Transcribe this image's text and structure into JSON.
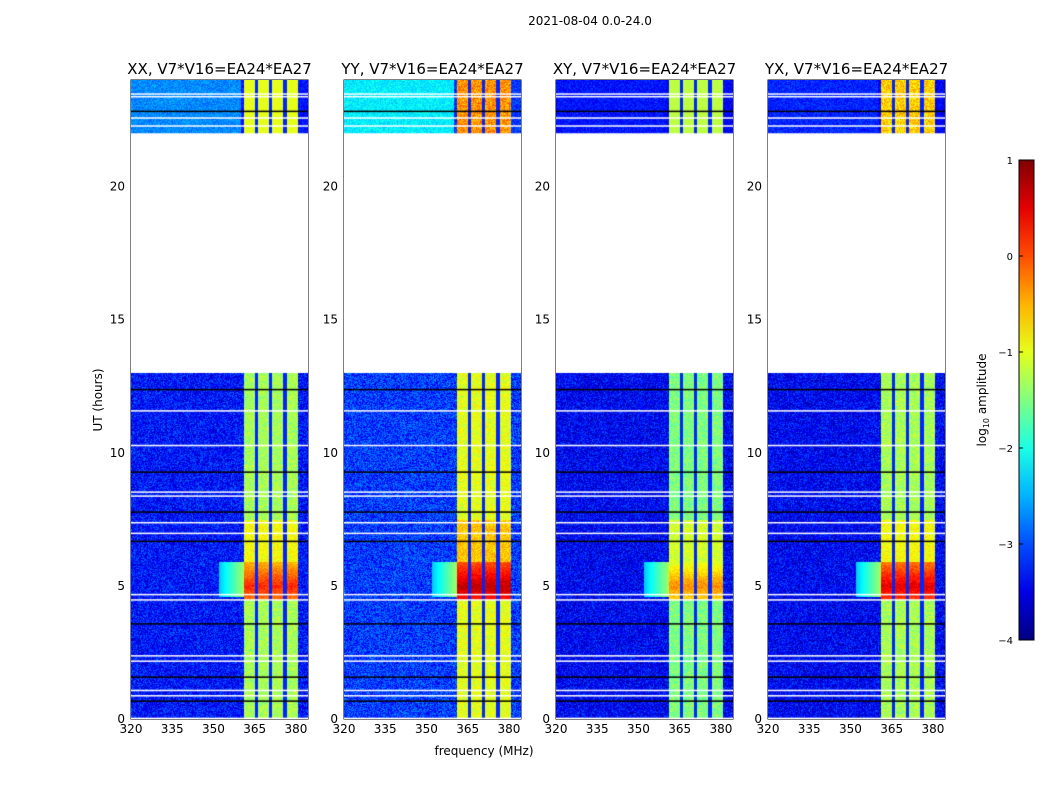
{
  "suptitle": "2021-08-04 0.0-24.0",
  "chart_data": {
    "type": "heatmap",
    "title": "2021-08-04 0.0-24.0",
    "xlabel": "frequency (MHz)",
    "ylabel": "UT (hours)",
    "xlim": [
      320,
      384.4
    ],
    "ylim": [
      0,
      24
    ],
    "xticks": [
      "320",
      "335",
      "350",
      "365",
      "380"
    ],
    "yticks": [
      "0",
      "5",
      "10",
      "15",
      "20"
    ],
    "panels": [
      {
        "title": "XX, V7*V16=EA24*EA27",
        "background_log_amp": -3.3,
        "band_log_amp": -1.3,
        "peak_log_amp": 0.2,
        "top_left_log_amp": -2.7
      },
      {
        "title": "YY, V7*V16=EA24*EA27",
        "background_log_amp": -3.1,
        "band_log_amp": -1.0,
        "peak_log_amp": 0.7,
        "top_left_log_amp": -2.2
      },
      {
        "title": "XY, V7*V16=EA24*EA27",
        "background_log_amp": -3.4,
        "band_log_amp": -1.5,
        "peak_log_amp": -0.3,
        "top_left_log_amp": -3.3
      },
      {
        "title": "YX, V7*V16=EA24*EA27",
        "background_log_amp": -3.4,
        "band_log_amp": -1.3,
        "peak_log_amp": 0.5,
        "top_left_log_amp": -3.2
      }
    ],
    "band_mhz": [
      361,
      380.5
    ],
    "band_notches_mhz": [
      365.6,
      370.7,
      375.8
    ],
    "no_data_hours": [
      13.0,
      22.0
    ],
    "flagged_rows_hours": [
      0.05,
      0.7,
      0.9,
      1.1,
      1.6,
      2.2,
      2.4,
      3.6,
      4.5,
      4.7,
      6.7,
      7.0,
      7.4,
      7.8,
      8.4,
      8.55,
      9.3,
      10.3,
      11.6,
      12.4,
      22.3,
      22.6,
      22.85,
      23.4,
      23.5
    ],
    "colorbar": {
      "label": "log10 amplitude",
      "label_main": "log",
      "label_sub": "10",
      "label_rest": " amplitude",
      "range": [
        -4,
        1
      ],
      "ticks": [
        "1",
        "0",
        "−1",
        "−2",
        "−3",
        "−4"
      ],
      "colormap": "jet"
    }
  }
}
